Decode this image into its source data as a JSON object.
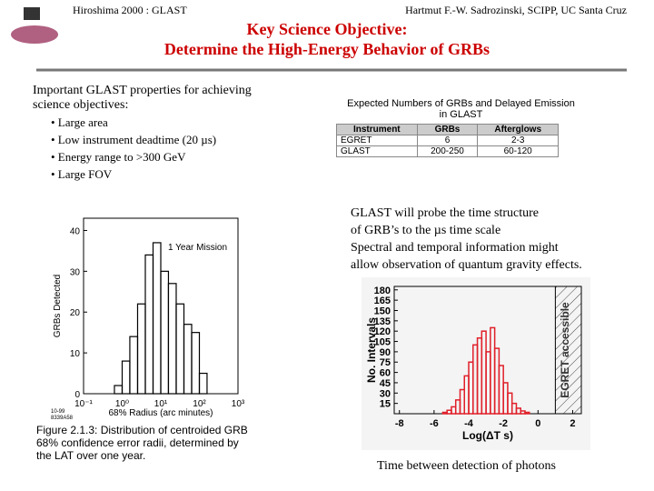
{
  "header": {
    "left": "Hiroshima 2000 : GLAST",
    "right": "Hartmut F.-W. Sadrozinski, SCIPP, UC Santa Cruz"
  },
  "title": [
    "Key Science Objective:",
    "Determine the High-Energy Behavior of GRBs"
  ],
  "properties": {
    "intro": [
      "Important GLAST properties for achieving",
      "science objectives:"
    ],
    "bullets": [
      "• Large area",
      "• Low instrument deadtime (20 µs)",
      "• Energy range to >300 GeV",
      "• Large FOV"
    ]
  },
  "table": {
    "caption": "Expected Numbers of GRBs and Delayed Emission in GLAST",
    "header": [
      "Instrument",
      "GRBs",
      "Afterglows"
    ],
    "rows": [
      [
        "EGRET",
        "6",
        "2-3"
      ],
      [
        "GLAST",
        "200-250",
        "60-120"
      ]
    ]
  },
  "notes": [
    "GLAST will probe the time structure",
    "of GRB’s to the µs time scale",
    "Spectral and temporal information might",
    "allow observation of quantum gravity effects."
  ],
  "figure1": {
    "type": "histogram",
    "ylabel": "GRBs Detected",
    "xlabel": "68% Radius (arc minutes)",
    "legend": "1 Year Mission",
    "code": [
      "10-99",
      "8339A58"
    ],
    "caption": "Figure 2.1.3: Distribution of centroided GRB 68% confidence error radii, determined by the LAT over one year.",
    "xscale": "log",
    "xlim": [
      0.1,
      1000
    ],
    "ylim": [
      0,
      43
    ],
    "color": "#000000",
    "xticks": [
      {
        "value": 0.1,
        "label": "10⁻¹"
      },
      {
        "value": 1,
        "label": "10⁰"
      },
      {
        "value": 10,
        "label": "10¹"
      },
      {
        "value": 100,
        "label": "10²"
      },
      {
        "value": 1000,
        "label": "10³"
      }
    ],
    "yticks": [
      0,
      10,
      20,
      30,
      40
    ],
    "bins": [
      0.63,
      1,
      1.58,
      2.51,
      3.98,
      6.31,
      10,
      15.8,
      25.1,
      39.8,
      63.1,
      100,
      158
    ],
    "counts": [
      2,
      8,
      14,
      22,
      34,
      37,
      30,
      27,
      22,
      17,
      15,
      5
    ]
  },
  "figure2": {
    "type": "histogram",
    "ylabel": "No. Intervals",
    "xlabel": "Log(ΔT s)",
    "annotation": "EGRET accessible",
    "caption": "Time between detection of photons",
    "shade_from": 1,
    "xlim": [
      -8.3,
      2.5
    ],
    "ylim": [
      0,
      185
    ],
    "color": "#e0202a",
    "xticks": [
      -8,
      -6,
      -4,
      -2,
      0,
      2
    ],
    "yticks": [
      15,
      30,
      45,
      60,
      75,
      90,
      105,
      120,
      135,
      150,
      165,
      180
    ],
    "bins": [
      -5.5,
      -5.25,
      -5,
      -4.75,
      -4.5,
      -4.25,
      -4,
      -3.75,
      -3.5,
      -3.25,
      -3,
      -2.75,
      -2.5,
      -2.25,
      -2,
      -1.75,
      -1.5,
      -1.25,
      -1,
      -0.75,
      -0.5
    ],
    "counts": [
      2,
      5,
      10,
      20,
      35,
      55,
      75,
      100,
      110,
      120,
      90,
      125,
      95,
      70,
      45,
      30,
      15,
      8,
      4,
      2
    ]
  }
}
